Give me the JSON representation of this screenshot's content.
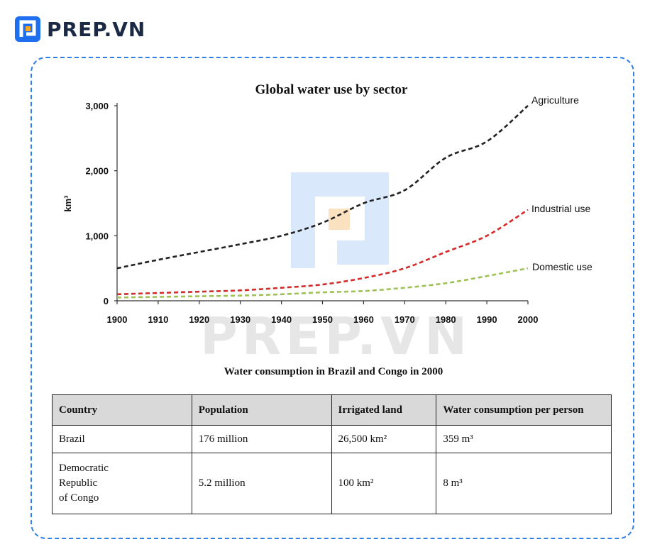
{
  "brand": {
    "name": "PREP.VN",
    "watermark": "PREP.VN"
  },
  "chart_data": {
    "type": "line",
    "title": "Global water use by sector",
    "ylabel": "km³",
    "xlabel": "",
    "x": [
      1900,
      1910,
      1920,
      1930,
      1940,
      1950,
      1960,
      1970,
      1980,
      1990,
      2000
    ],
    "x_tick_labels": [
      "1900",
      "1910",
      "1920",
      "1930",
      "1940",
      "1950",
      "1960",
      "1970",
      "1980",
      "1990",
      "2000"
    ],
    "y_ticks": [
      0,
      1000,
      2000,
      3000
    ],
    "y_tick_labels": [
      "0",
      "1,000",
      "2,000",
      "3,000"
    ],
    "ylim": [
      0,
      3000
    ],
    "xlim": [
      1900,
      2000
    ],
    "grid": false,
    "series": [
      {
        "name": "Agriculture",
        "color": "#222222",
        "values": [
          500,
          630,
          750,
          870,
          1000,
          1200,
          1500,
          1700,
          2200,
          2450,
          3000
        ]
      },
      {
        "name": "Industrial use",
        "color": "#d42a2a",
        "values": [
          100,
          120,
          140,
          160,
          200,
          250,
          350,
          500,
          750,
          1000,
          1400
        ]
      },
      {
        "name": "Domestic use",
        "color": "#9cc255",
        "values": [
          50,
          60,
          70,
          80,
          100,
          130,
          150,
          200,
          270,
          380,
          500
        ]
      }
    ]
  },
  "table": {
    "title": "Water consumption in Brazil and Congo in 2000",
    "headers": [
      "Country",
      "Population",
      "Irrigated land",
      "Water consumption per person"
    ],
    "rows": [
      [
        "Brazil",
        "176 million",
        "26,500 km²",
        "359 m³"
      ],
      [
        "Democratic\nRepublic\nof Congo",
        "5.2 million",
        "100 km²",
        "8 m³"
      ]
    ]
  }
}
